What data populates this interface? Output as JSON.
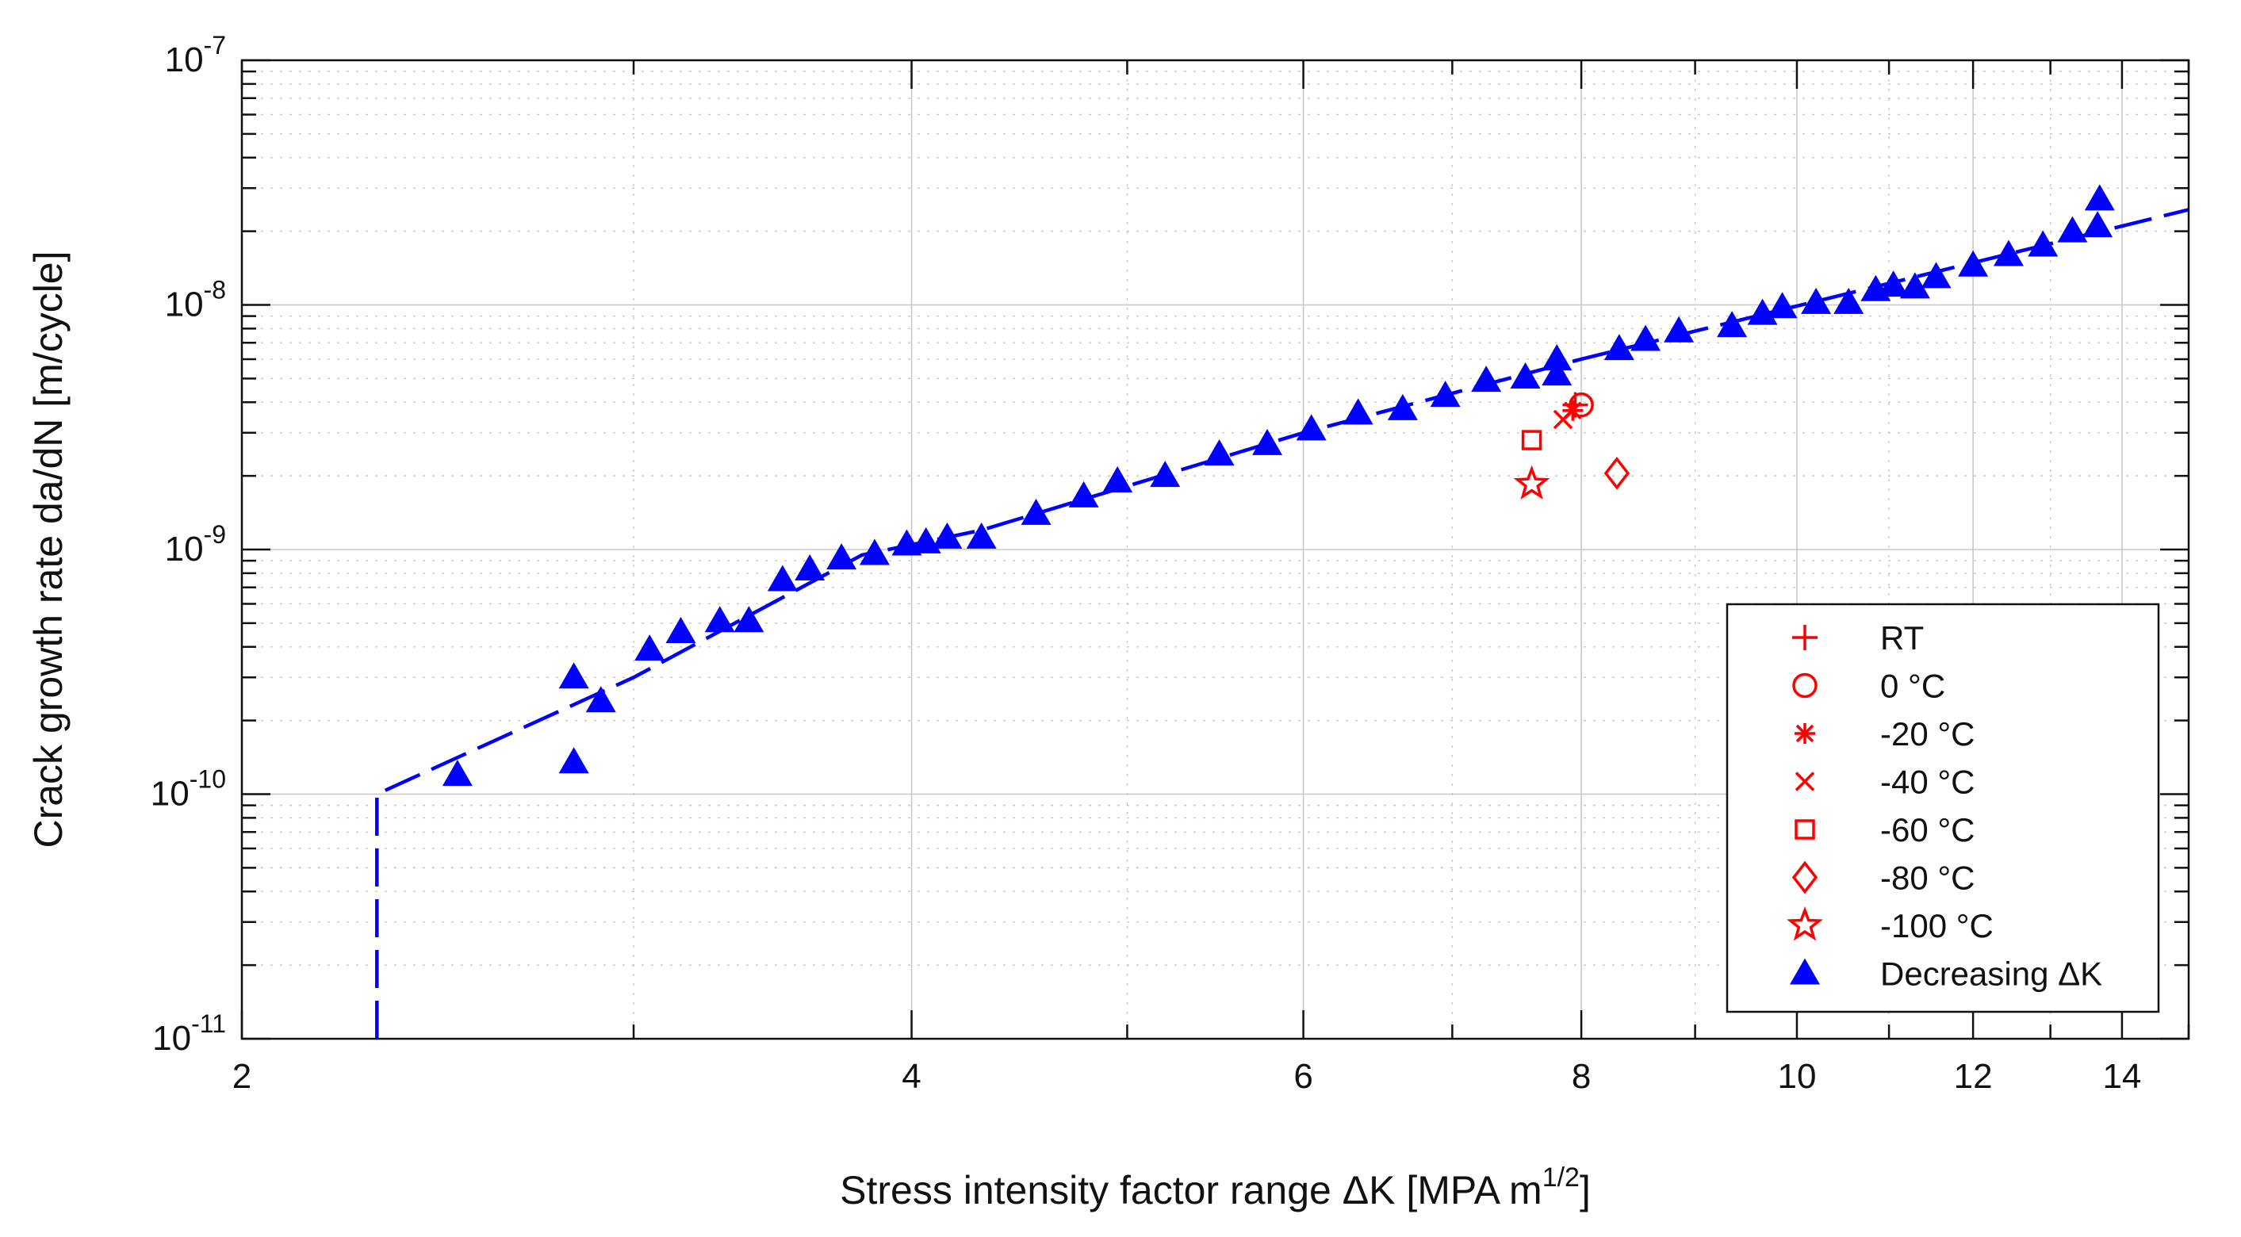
{
  "chart_data": {
    "type": "scatter",
    "title": "",
    "xlabel": "Stress intensity factor range ΔK [MPA m",
    "xlabel_sup": "1/2",
    "xlabel_end": "]",
    "ylabel": "Crack growth rate da/dN [m/cycle]",
    "x_scale": "log",
    "y_scale": "log",
    "xlim": [
      2,
      15
    ],
    "ylim": [
      1e-11,
      1e-07
    ],
    "grid": true,
    "x_ticks": [
      {
        "value": 2,
        "label": "2"
      },
      {
        "value": 4,
        "label": "4"
      },
      {
        "value": 6,
        "label": "6"
      },
      {
        "value": 8,
        "label": "8"
      },
      {
        "value": 10,
        "label": "10"
      },
      {
        "value": 12,
        "label": "12"
      },
      {
        "value": 14,
        "label": "14"
      }
    ],
    "y_ticks": [
      {
        "value": 1e-11,
        "base": "10",
        "exp": "-11"
      },
      {
        "value": 1e-10,
        "base": "10",
        "exp": "-10"
      },
      {
        "value": 1e-09,
        "base": "10",
        "exp": "-9"
      },
      {
        "value": 1e-08,
        "base": "10",
        "exp": "-8"
      },
      {
        "value": 1e-07,
        "base": "10",
        "exp": "-7"
      }
    ],
    "legend_position": "bottom-right",
    "series": [
      {
        "name": "RT",
        "marker": "plus",
        "color": "#ff0000",
        "points": [
          [
            7.95,
            3.9e-09
          ]
        ]
      },
      {
        "name": "0 °C",
        "marker": "circle",
        "color": "#ff0000",
        "points": [
          [
            8.0,
            3.9e-09
          ]
        ]
      },
      {
        "name": "-20 °C",
        "marker": "asterisk",
        "color": "#ff0000",
        "points": [
          [
            7.93,
            3.7e-09
          ]
        ]
      },
      {
        "name": "-40 °C",
        "marker": "x",
        "color": "#ff0000",
        "points": [
          [
            7.85,
            3.4e-09
          ]
        ]
      },
      {
        "name": "-60 °C",
        "marker": "square",
        "color": "#ff0000",
        "points": [
          [
            7.6,
            2.8e-09
          ]
        ]
      },
      {
        "name": "-80 °C",
        "marker": "diamond",
        "color": "#ff0000",
        "points": [
          [
            8.3,
            2.05e-09
          ]
        ]
      },
      {
        "name": "-100 °C",
        "marker": "star",
        "color": "#ff0000",
        "points": [
          [
            7.6,
            1.85e-09
          ]
        ]
      },
      {
        "name": "Decreasing ΔK",
        "marker": "triangle",
        "color": "#0000ff",
        "points": [
          [
            2.5,
            1.2e-10
          ],
          [
            2.82,
            3e-10
          ],
          [
            2.82,
            1.35e-10
          ],
          [
            2.9,
            2.4e-10
          ],
          [
            3.05,
            3.9e-10
          ],
          [
            3.15,
            4.6e-10
          ],
          [
            3.28,
            5.1e-10
          ],
          [
            3.38,
            5.1e-10
          ],
          [
            3.5,
            7.5e-10
          ],
          [
            3.6,
            8.3e-10
          ],
          [
            3.72,
            9.2e-10
          ],
          [
            3.85,
            9.6e-10
          ],
          [
            3.98,
            1.05e-09
          ],
          [
            4.06,
            1.07e-09
          ],
          [
            4.15,
            1.12e-09
          ],
          [
            4.3,
            1.12e-09
          ],
          [
            4.55,
            1.4e-09
          ],
          [
            4.78,
            1.65e-09
          ],
          [
            4.95,
            1.9e-09
          ],
          [
            5.2,
            2e-09
          ],
          [
            5.5,
            2.45e-09
          ],
          [
            5.78,
            2.7e-09
          ],
          [
            6.05,
            3.1e-09
          ],
          [
            6.35,
            3.6e-09
          ],
          [
            6.65,
            3.75e-09
          ],
          [
            6.95,
            4.25e-09
          ],
          [
            7.25,
            4.9e-09
          ],
          [
            7.55,
            5.05e-09
          ],
          [
            7.8,
            5.2e-09
          ],
          [
            7.8,
            6e-09
          ],
          [
            8.32,
            6.6e-09
          ],
          [
            8.55,
            7.2e-09
          ],
          [
            8.85,
            7.8e-09
          ],
          [
            9.35,
            8.2e-09
          ],
          [
            9.65,
            9.2e-09
          ],
          [
            9.85,
            9.8e-09
          ],
          [
            10.2,
            1.02e-08
          ],
          [
            10.55,
            1.02e-08
          ],
          [
            10.85,
            1.15e-08
          ],
          [
            11.05,
            1.2e-08
          ],
          [
            11.3,
            1.18e-08
          ],
          [
            11.55,
            1.3e-08
          ],
          [
            12.0,
            1.45e-08
          ],
          [
            12.45,
            1.6e-08
          ],
          [
            12.9,
            1.75e-08
          ],
          [
            13.3,
            2e-08
          ],
          [
            13.65,
            2.1e-08
          ],
          [
            13.68,
            2.7e-08
          ]
        ]
      }
    ],
    "fit_line": {
      "style": "dashed",
      "color": "#0000ff",
      "points": [
        [
          2.3,
          1e-11
        ],
        [
          2.3,
          1e-10
        ],
        [
          3.0,
          3e-10
        ],
        [
          3.8,
          9.5e-10
        ],
        [
          4.3,
          1.2e-09
        ],
        [
          6.0,
          3e-09
        ],
        [
          8.0,
          6e-09
        ],
        [
          15.0,
          2.45e-08
        ]
      ]
    }
  }
}
